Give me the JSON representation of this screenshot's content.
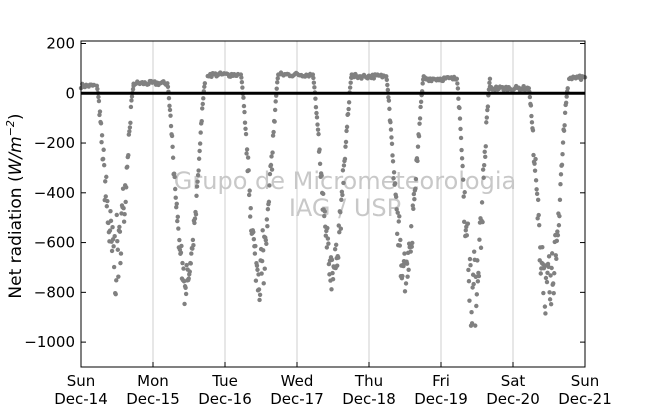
{
  "chart_data": {
    "type": "scatter",
    "title": "",
    "ylabel": "Net radiation (W/m⁻²)",
    "ylabel_math": {
      "prefix": "Net radiation (",
      "unit": "W/m",
      "exp": "−2",
      "suffix": ")"
    },
    "xlabel": "",
    "ylim": [
      -1100,
      210
    ],
    "xlim": [
      0,
      7
    ],
    "yticks": [
      200,
      0,
      -200,
      -400,
      -600,
      -800,
      -1000
    ],
    "ytick_labels": [
      "200",
      "0",
      "−200",
      "−400",
      "−600",
      "−800",
      "−1000"
    ],
    "xticks": [
      0,
      1,
      2,
      3,
      4,
      5,
      6,
      7
    ],
    "xtick_labels": [
      [
        "Sun",
        "Dec-14"
      ],
      [
        "Mon",
        "Dec-15"
      ],
      [
        "Tue",
        "Dec-16"
      ],
      [
        "Wed",
        "Dec-17"
      ],
      [
        "Thu",
        "Dec-18"
      ],
      [
        "Fri",
        "Dec-19"
      ],
      [
        "Sat",
        "Dec-20"
      ],
      [
        "Sun",
        "Dec-21"
      ]
    ],
    "grid": "vertical",
    "zero_line": 0,
    "marker_color": "#808080",
    "watermark": [
      "Grupo de Micrometeorologia",
      "IAG / USP"
    ],
    "days": [
      {
        "day": 0,
        "night_start": 0.0,
        "night_end": 0.18,
        "night_level": 30,
        "day_start": 0.22,
        "day_end": 0.73,
        "min": -760,
        "noise": 280
      },
      {
        "day": 1,
        "night_start": 0.73,
        "night_end": 1.18,
        "night_level": 40,
        "day_start": 1.2,
        "day_end": 1.72,
        "min": -830,
        "noise": 120
      },
      {
        "day": 2,
        "night_start": 1.76,
        "night_end": 2.18,
        "night_level": 75,
        "day_start": 2.22,
        "day_end": 2.74,
        "min": -820,
        "noise": 230
      },
      {
        "day": 3,
        "night_start": 2.76,
        "night_end": 3.2,
        "night_level": 75,
        "day_start": 3.22,
        "day_end": 3.76,
        "min": -770,
        "noise": 150
      },
      {
        "day": 4,
        "night_start": 3.76,
        "night_end": 4.22,
        "night_level": 68,
        "day_start": 4.24,
        "day_end": 4.76,
        "min": -770,
        "noise": 160
      },
      {
        "day": 5,
        "night_start": 4.78,
        "night_end": 5.2,
        "night_level": 58,
        "day_start": 5.22,
        "day_end": 5.68,
        "min": -890,
        "noise": 300
      },
      {
        "day": 6,
        "night_start": 5.68,
        "night_end": 6.2,
        "night_level": 20,
        "day_start": 6.22,
        "day_end": 6.76,
        "min": -910,
        "noise": 260
      },
      {
        "day": 7,
        "night_start": 6.78,
        "night_end": 7.0,
        "night_level": 62,
        "day_start": 7.0,
        "day_end": 7.0,
        "min": 0,
        "noise": 0
      }
    ]
  }
}
